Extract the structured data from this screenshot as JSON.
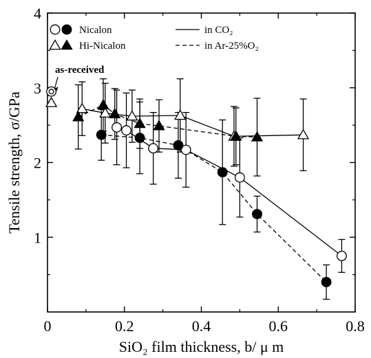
{
  "chart_data": {
    "type": "scatter",
    "xlabel": "SiO₂ film thickness, b/ μ m",
    "ylabel": "Tensile strength, σ/GPa",
    "xlim": [
      0,
      0.8
    ],
    "ylim": [
      0,
      4
    ],
    "x_ticks": [
      "0",
      "0.2",
      "0.4",
      "0.6",
      "0.8"
    ],
    "y_ticks": [
      "1",
      "2",
      "3",
      "4"
    ],
    "grid": false,
    "legend_position": "top-left",
    "legend": {
      "markers": [
        {
          "label": "Nicalon",
          "symbols": [
            "open-circle",
            "filled-circle"
          ]
        },
        {
          "label": "Hi-Nicalon",
          "symbols": [
            "open-triangle",
            "filled-triangle"
          ]
        }
      ],
      "lines": [
        {
          "label": "in CO₂",
          "style": "solid"
        },
        {
          "label": "in Ar-25%O₂",
          "style": "dashed"
        }
      ]
    },
    "annotation": {
      "text": "as-received",
      "x": 0.01,
      "y": 2.95
    },
    "as_received": [
      {
        "marker": "double-circle",
        "x": 0.01,
        "y": 2.95
      },
      {
        "marker": "open-triangle",
        "x": 0.01,
        "y": 2.8
      }
    ],
    "series": [
      {
        "name": "Nicalon in CO₂",
        "marker": "open-circle",
        "line": "solid",
        "points": [
          {
            "x": 0.18,
            "y": 2.47,
            "lo": 1.97,
            "hi": 2.97
          },
          {
            "x": 0.205,
            "y": 2.43,
            "lo": 1.93,
            "hi": 2.93
          },
          {
            "x": 0.275,
            "y": 2.19,
            "lo": 1.71,
            "hi": 2.67
          },
          {
            "x": 0.36,
            "y": 2.17,
            "lo": 1.67,
            "hi": 2.67
          },
          {
            "x": 0.5,
            "y": 1.8,
            "lo": 1.27,
            "hi": 2.33
          },
          {
            "x": 0.765,
            "y": 0.75,
            "lo": 0.53,
            "hi": 0.97
          }
        ]
      },
      {
        "name": "Nicalon in Ar-25%O₂",
        "marker": "filled-circle",
        "line": "dashed",
        "points": [
          {
            "x": 0.14,
            "y": 2.37,
            "lo": 2.03,
            "hi": 2.71
          },
          {
            "x": 0.24,
            "y": 2.33,
            "lo": 1.85,
            "hi": 2.81
          },
          {
            "x": 0.34,
            "y": 2.23,
            "lo": 1.79,
            "hi": 2.67
          },
          {
            "x": 0.455,
            "y": 1.87,
            "lo": 1.17,
            "hi": 2.57
          },
          {
            "x": 0.545,
            "y": 1.31,
            "lo": 1.07,
            "hi": 1.55
          },
          {
            "x": 0.725,
            "y": 0.4,
            "lo": 0.17,
            "hi": 0.63
          }
        ]
      },
      {
        "name": "Hi-Nicalon in CO₂",
        "marker": "open-triangle",
        "line": "solid",
        "points": [
          {
            "x": 0.09,
            "y": 2.72,
            "lo": 2.36,
            "hi": 3.08
          },
          {
            "x": 0.15,
            "y": 2.66,
            "lo": 2.26,
            "hi": 3.06
          },
          {
            "x": 0.22,
            "y": 2.62,
            "lo": 2.27,
            "hi": 2.97
          },
          {
            "x": 0.345,
            "y": 2.63,
            "lo": 2.14,
            "hi": 3.12
          },
          {
            "x": 0.485,
            "y": 2.35,
            "lo": 1.95,
            "hi": 2.75
          },
          {
            "x": 0.665,
            "y": 2.37,
            "lo": 1.89,
            "hi": 2.85
          }
        ]
      },
      {
        "name": "Hi-Nicalon in Ar-25%O₂",
        "marker": "filled-triangle",
        "line": "dashed",
        "points": [
          {
            "x": 0.08,
            "y": 2.61,
            "lo": 2.18,
            "hi": 3.04
          },
          {
            "x": 0.145,
            "y": 2.77,
            "lo": 2.42,
            "hi": 3.12
          },
          {
            "x": 0.175,
            "y": 2.65,
            "lo": 2.31,
            "hi": 2.99
          },
          {
            "x": 0.24,
            "y": 2.52,
            "lo": 2.19,
            "hi": 2.85
          },
          {
            "x": 0.29,
            "y": 2.49,
            "lo": 2.14,
            "hi": 2.84
          },
          {
            "x": 0.49,
            "y": 2.35,
            "lo": 1.97,
            "hi": 2.73
          },
          {
            "x": 0.545,
            "y": 2.34,
            "lo": 1.82,
            "hi": 2.86
          }
        ]
      }
    ]
  }
}
